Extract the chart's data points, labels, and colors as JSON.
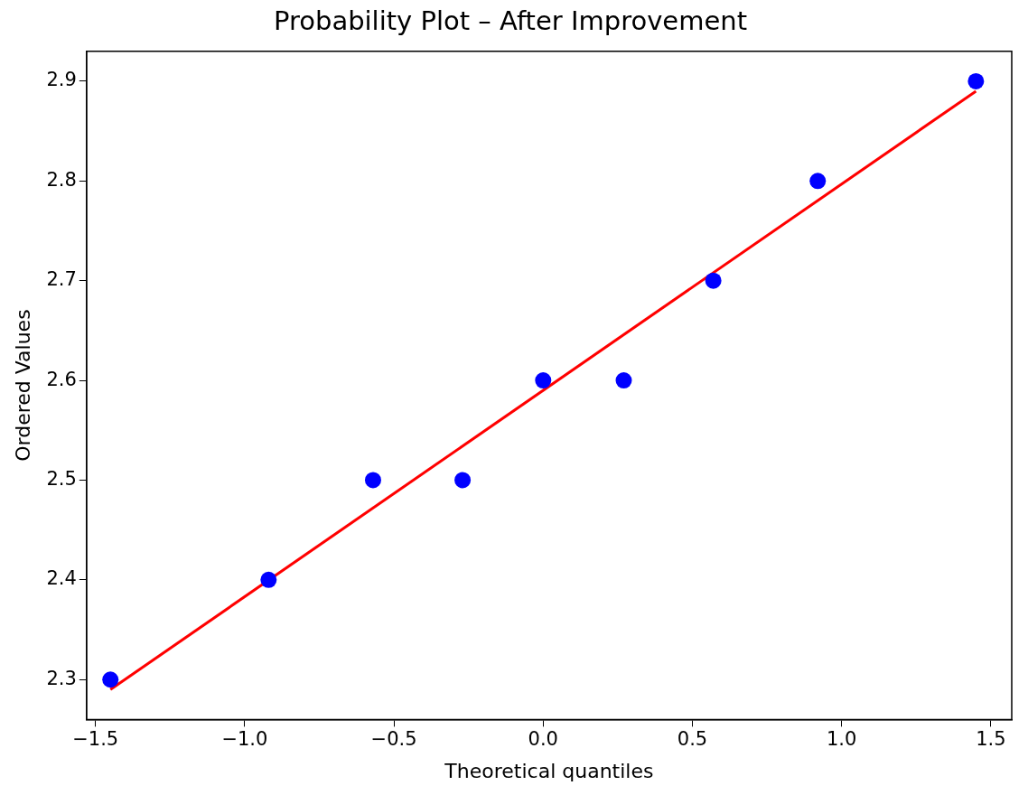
{
  "chart_data": {
    "type": "scatter",
    "title": "Probability Plot – After Improvement",
    "xlabel": "Theoretical quantiles",
    "ylabel": "Ordered Values",
    "series": [
      {
        "type": "scatter",
        "marker": "circle",
        "color": "#0000ff",
        "x": [
          -1.45,
          -0.92,
          -0.57,
          -0.27,
          0,
          0.27,
          0.57,
          0.92,
          1.45
        ],
        "values": [
          2.3,
          2.4,
          2.5,
          2.5,
          2.6,
          2.6,
          2.7,
          2.8,
          2.9
        ]
      },
      {
        "type": "line",
        "marker": "none",
        "color": "#ff0000",
        "x": [
          -1.45,
          1.45
        ],
        "values": [
          2.29,
          2.89
        ]
      }
    ],
    "grid": false,
    "legend": false,
    "xlim": [
      -1.53,
      1.57
    ],
    "ylim": [
      2.26,
      2.93
    ],
    "xticks": [
      {
        "value": -1.5,
        "label": "−1.5"
      },
      {
        "value": -1,
        "label": "−1.0"
      },
      {
        "value": -0.5,
        "label": "−0.5"
      },
      {
        "value": 0,
        "label": "0.0"
      },
      {
        "value": 0.5,
        "label": "0.5"
      },
      {
        "value": 1,
        "label": "1.0"
      },
      {
        "value": 1.5,
        "label": "1.5"
      }
    ],
    "yticks": [
      2.3,
      2.4,
      2.5,
      2.6,
      2.7,
      2.8,
      2.9
    ]
  }
}
